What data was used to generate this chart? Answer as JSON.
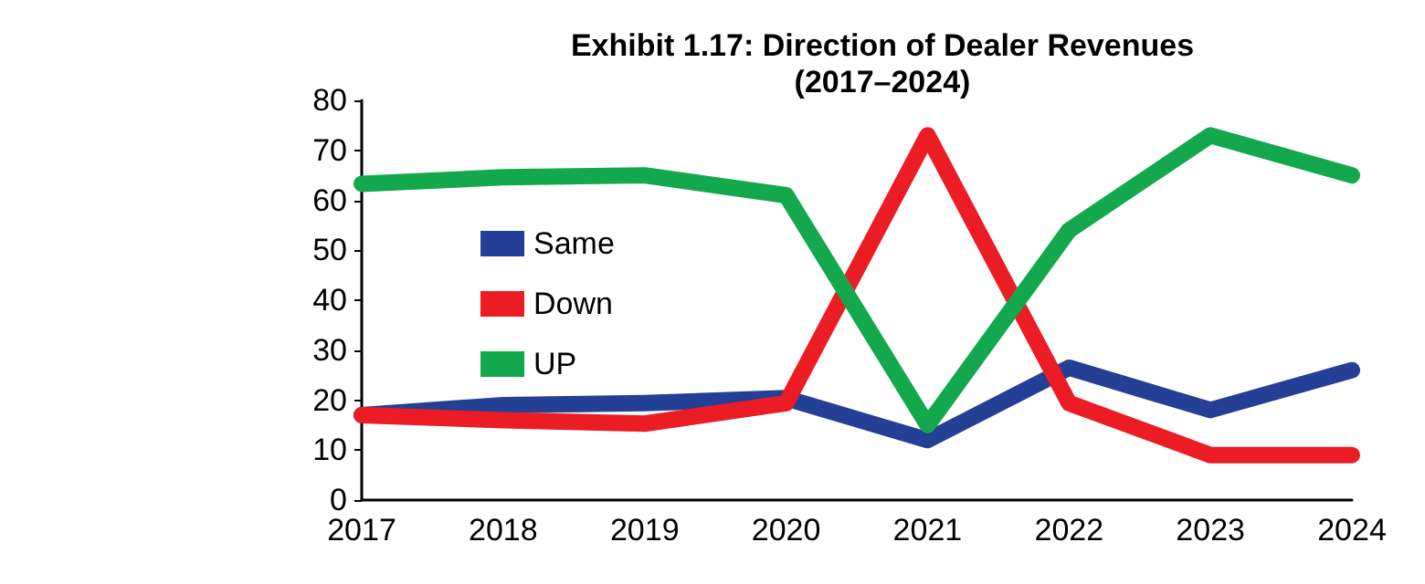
{
  "chart_data": {
    "type": "line",
    "title": "Exhibit 1.17: Direction of Dealer Revenues\n(2017–2024)",
    "categories": [
      "2017",
      "2018",
      "2019",
      "2020",
      "2021",
      "2022",
      "2023",
      "2024"
    ],
    "series": [
      {
        "name": "Same",
        "color": "#233f96",
        "values": [
          17,
          19,
          19.4,
          20.4,
          12,
          26.5,
          18,
          26
        ]
      },
      {
        "name": "Down",
        "color": "#ec1c24",
        "values": [
          17,
          16,
          15.3,
          19.4,
          73,
          19.4,
          9,
          9
        ]
      },
      {
        "name": "UP",
        "color": "#12a84b",
        "values": [
          63.3,
          64.6,
          65,
          61,
          15,
          54,
          73,
          65
        ]
      }
    ],
    "ylim": [
      0,
      80
    ],
    "yticks": [
      0,
      10,
      20,
      30,
      40,
      50,
      60,
      70,
      80
    ],
    "grid": false,
    "legend": "left",
    "marker": "none",
    "line_style": "solid"
  }
}
